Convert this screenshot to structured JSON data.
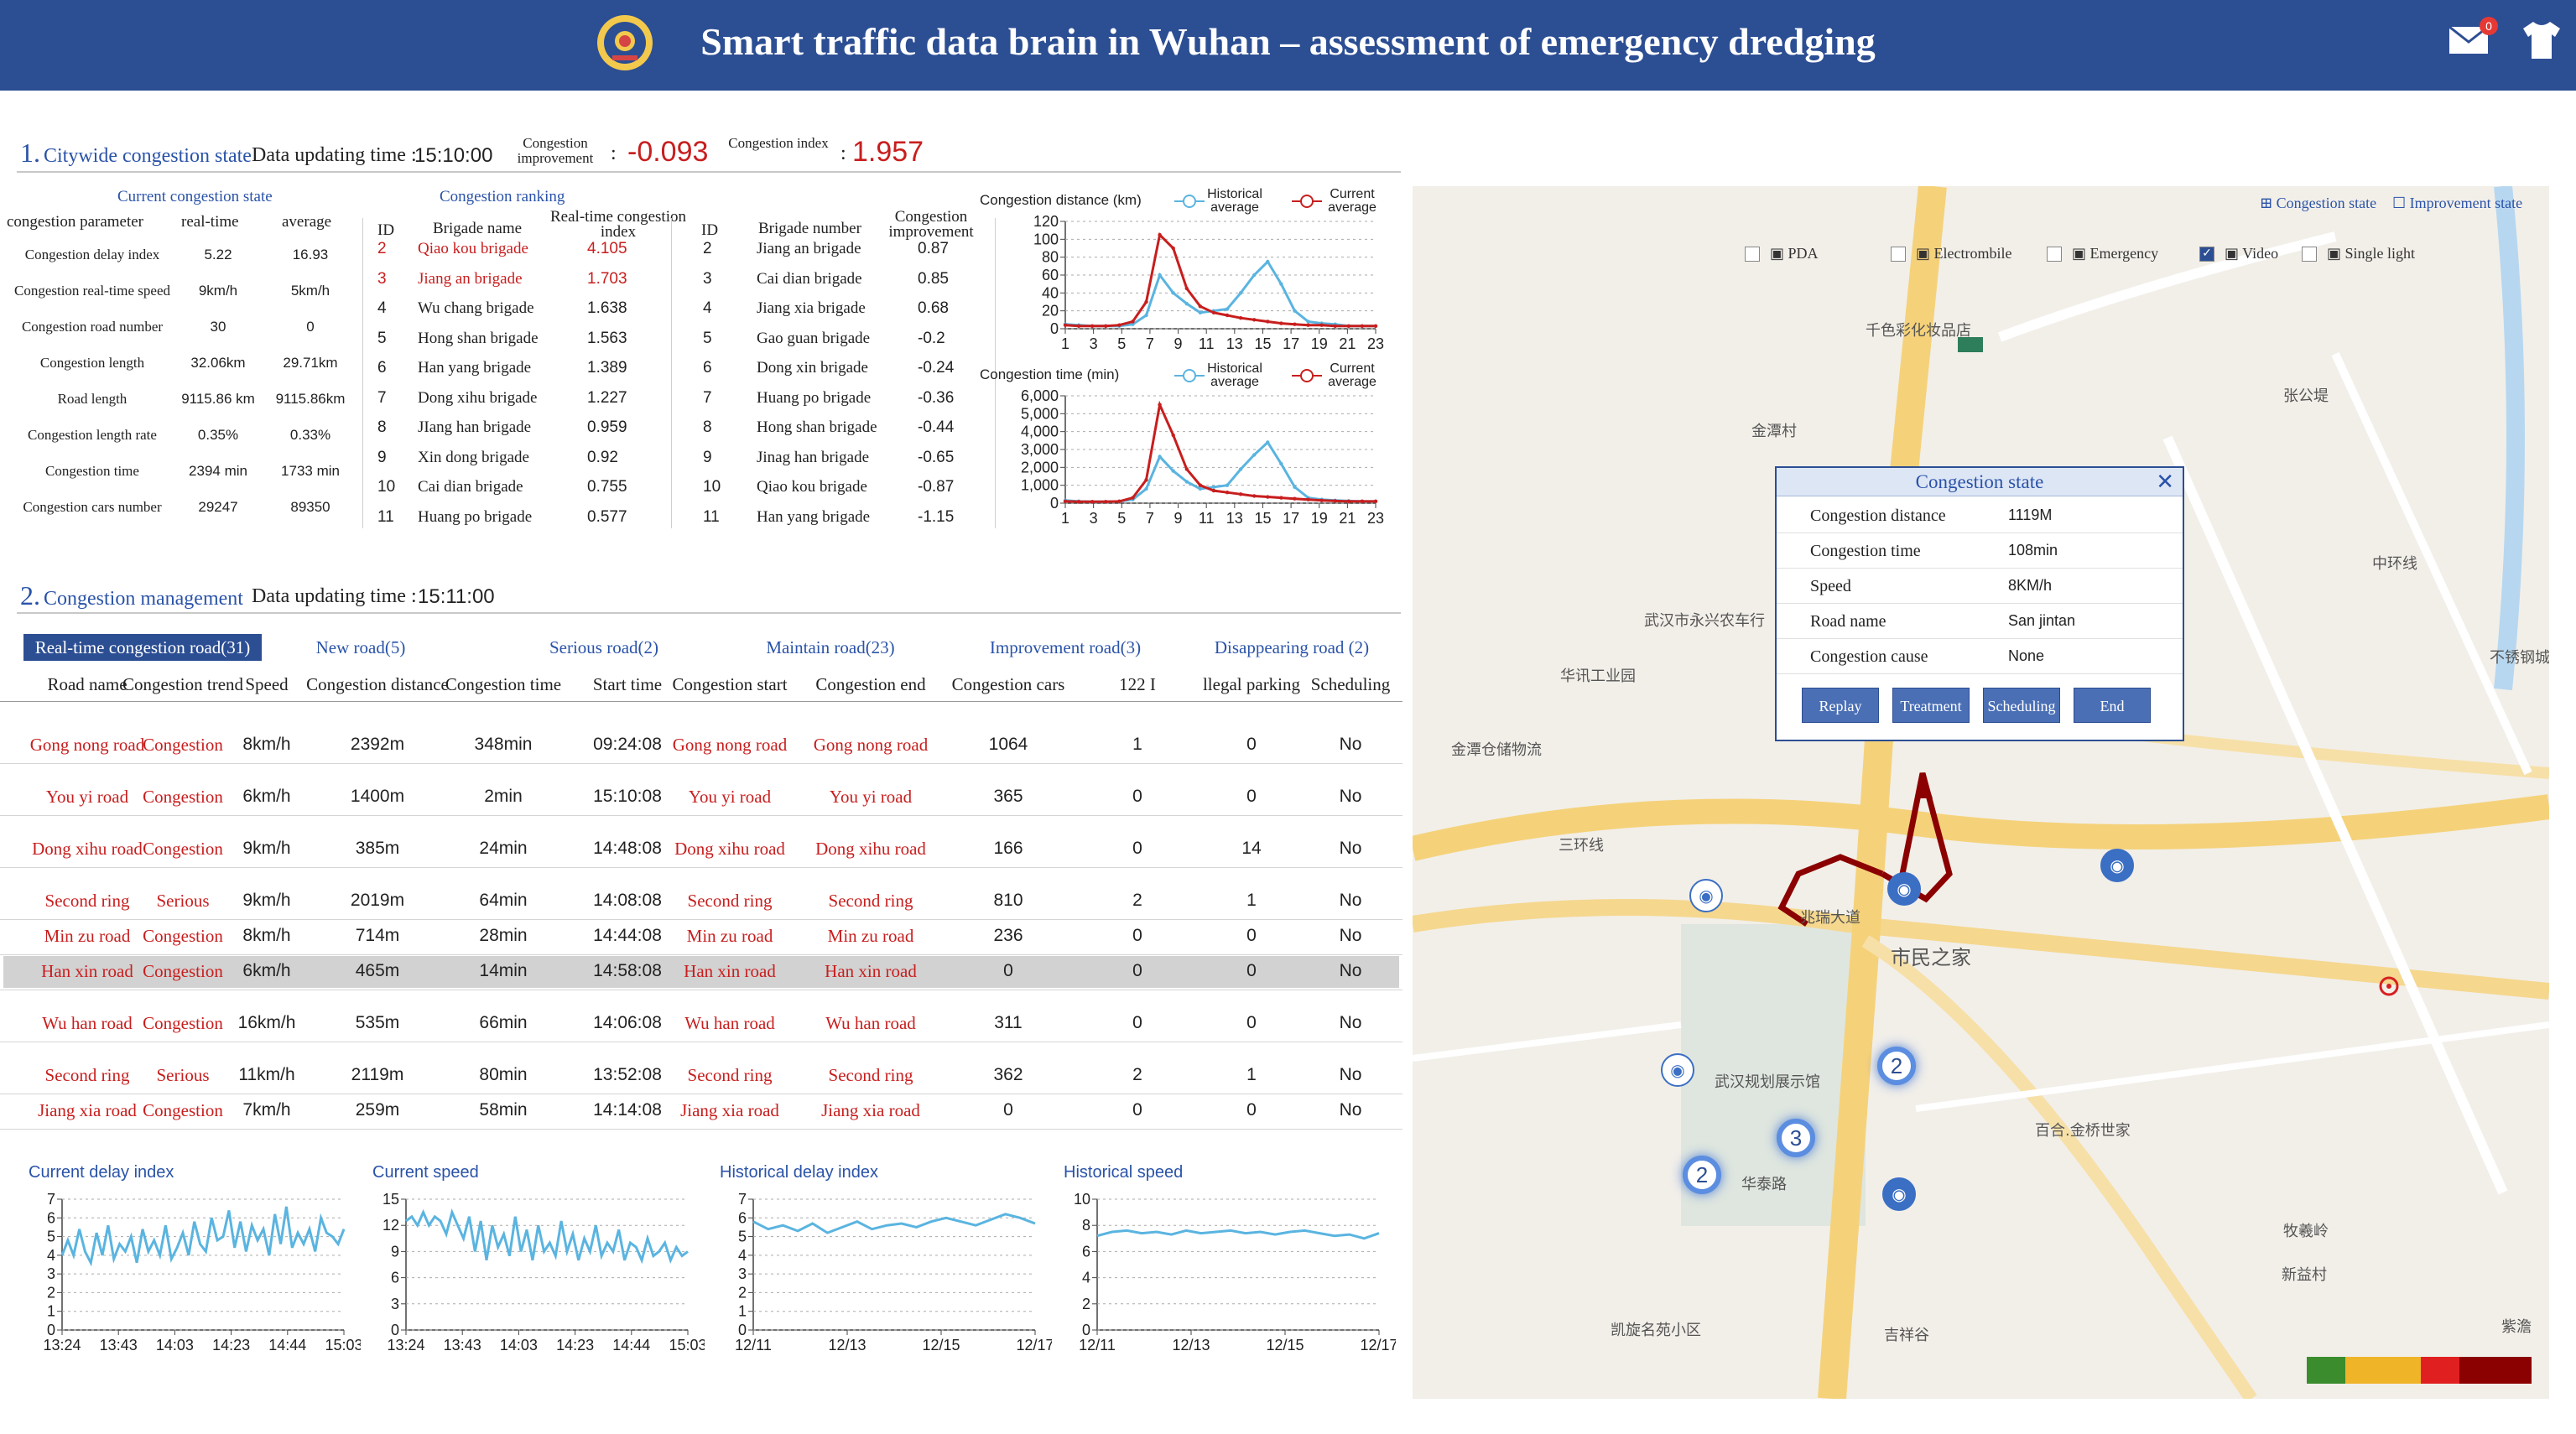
{
  "header": {
    "title": "Smart traffic data brain in Wuhan – assessment of emergency dredging",
    "notification_count": "0"
  },
  "colors": {
    "header_bg": "#2c4e93",
    "accent": "#2a53a8",
    "red": "#c81e1e",
    "series_blue": "#5ab4e0",
    "legend": [
      "#3a8c2c",
      "#f0b429",
      "#e02020",
      "#8b0000"
    ]
  },
  "section1": {
    "num": "1.",
    "title": "Citywide congestion state",
    "update_label": "Data updating time :",
    "update_time": "15:10:00",
    "improve_label": "Congestion improvement",
    "improve_value": "-0.093",
    "index_label": "Congestion index",
    "index_value": "1.957"
  },
  "current_state": {
    "title": "Current congestion state",
    "headers": [
      "congestion parameter",
      "real-time",
      "average"
    ],
    "rows": [
      [
        "Congestion delay index",
        "5.22",
        "16.93"
      ],
      [
        "Congestion real-time speed",
        "9km/h",
        "5km/h"
      ],
      [
        "Congestion road number",
        "30",
        "0"
      ],
      [
        "Congestion length",
        "32.06km",
        "29.71km"
      ],
      [
        "Road length",
        "9115.86 km",
        "9115.86km"
      ],
      [
        "Congestion length rate",
        "0.35%",
        "0.33%"
      ],
      [
        "Congestion time",
        "2394 min",
        "1733 min"
      ],
      [
        "Congestion cars number",
        "29247",
        "89350"
      ]
    ]
  },
  "ranking": {
    "title": "Congestion ranking",
    "h_id": "ID",
    "h_name": "Brigade name",
    "h_index": "Real-time congestion index",
    "h_id2": "ID",
    "h_num": "Brigade number",
    "h_improve": "Congestion improvement",
    "left": [
      [
        "2",
        "Qiao kou brigade",
        "4.105"
      ],
      [
        "3",
        "Jiang an brigade",
        "1.703"
      ],
      [
        "4",
        "Wu chang brigade",
        "1.638"
      ],
      [
        "5",
        "Hong shan brigade",
        "1.563"
      ],
      [
        "6",
        "Han yang brigade",
        "1.389"
      ],
      [
        "7",
        "Dong xihu brigade",
        "1.227"
      ],
      [
        "8",
        "JIang han brigade",
        "0.959"
      ],
      [
        "9",
        "Xin dong brigade",
        "0.92"
      ],
      [
        "10",
        "Cai dian brigade",
        "0.755"
      ],
      [
        "11",
        "Huang po brigade",
        "0.577"
      ]
    ],
    "right": [
      [
        "2",
        "Jiang an brigade",
        "0.87"
      ],
      [
        "3",
        "Cai dian brigade",
        "0.85"
      ],
      [
        "4",
        "Jiang xia brigade",
        "0.68"
      ],
      [
        "5",
        "Gao guan brigade",
        "-0.2"
      ],
      [
        "6",
        "Dong xin brigade",
        "-0.24"
      ],
      [
        "7",
        "Huang po brigade",
        "-0.36"
      ],
      [
        "8",
        "Hong shan brigade",
        "-0.44"
      ],
      [
        "9",
        "Jinag han brigade",
        "-0.65"
      ],
      [
        "10",
        "Qiao kou brigade",
        "-0.87"
      ],
      [
        "11",
        "Han yang brigade",
        "-1.15"
      ]
    ]
  },
  "chart_data": [
    {
      "type": "line",
      "title": "Congestion distance (km)",
      "x": [
        1,
        2,
        3,
        4,
        5,
        6,
        7,
        8,
        9,
        10,
        11,
        12,
        13,
        14,
        15,
        16,
        17,
        18,
        19,
        20,
        21,
        22,
        23,
        24
      ],
      "xticks": [
        "1",
        "3",
        "5",
        "7",
        "9",
        "11",
        "13",
        "15",
        "17",
        "19",
        "21",
        "23"
      ],
      "ylim": [
        0,
        120
      ],
      "yticks": [
        "0",
        "20",
        "40",
        "60",
        "80",
        "100",
        "120"
      ],
      "series": [
        {
          "name": "Historical average",
          "color": "#5ab4e0",
          "values": [
            5,
            4,
            3,
            3,
            3,
            5,
            15,
            60,
            40,
            28,
            18,
            20,
            22,
            40,
            60,
            75,
            50,
            20,
            8,
            6,
            5,
            3,
            3,
            3
          ]
        },
        {
          "name": "Current average",
          "color": "#c81e1e",
          "values": [
            4,
            3,
            3,
            3,
            4,
            8,
            30,
            105,
            90,
            45,
            25,
            18,
            15,
            12,
            10,
            8,
            6,
            5,
            4,
            4,
            3,
            3,
            3,
            3
          ]
        }
      ]
    },
    {
      "type": "line",
      "title": "Congestion time (min)",
      "x": [
        1,
        2,
        3,
        4,
        5,
        6,
        7,
        8,
        9,
        10,
        11,
        12,
        13,
        14,
        15,
        16,
        17,
        18,
        19,
        20,
        21,
        22,
        23,
        24
      ],
      "xticks": [
        "1",
        "3",
        "5",
        "7",
        "9",
        "11",
        "13",
        "15",
        "17",
        "19",
        "21",
        "23"
      ],
      "ylim": [
        0,
        6000
      ],
      "yticks": [
        "0",
        "1,000",
        "2,000",
        "3,000",
        "4,000",
        "5,000",
        "6,000"
      ],
      "series": [
        {
          "name": "Historical average",
          "color": "#5ab4e0",
          "values": [
            150,
            100,
            80,
            80,
            100,
            200,
            800,
            2600,
            1800,
            1200,
            800,
            900,
            1000,
            1900,
            2700,
            3400,
            2200,
            900,
            300,
            200,
            150,
            120,
            100,
            100
          ]
        },
        {
          "name": "Current average",
          "color": "#c81e1e",
          "values": [
            100,
            80,
            80,
            80,
            100,
            300,
            1300,
            5500,
            3800,
            1900,
            1000,
            700,
            600,
            500,
            400,
            350,
            300,
            250,
            200,
            150,
            120,
            100,
            100,
            100
          ]
        }
      ]
    },
    {
      "type": "line",
      "title": "Current delay index",
      "xticks": [
        "13:24",
        "13:43",
        "14:03",
        "14:23",
        "14:44",
        "15:03"
      ],
      "ylim": [
        0,
        7
      ],
      "yticks": [
        "0",
        "1",
        "2",
        "3",
        "4",
        "5",
        "6",
        "7"
      ],
      "series": [
        {
          "color": "#5ab4e0",
          "values": [
            4,
            4.8,
            4,
            5.4,
            4.2,
            3.6,
            5.2,
            4,
            5.6,
            3.8,
            4.6,
            4.2,
            5,
            3.6,
            5.4,
            4.2,
            4.8,
            4,
            5.6,
            3.8,
            4.4,
            5.2,
            4,
            5.8,
            4.6,
            4.2,
            6,
            4.8,
            5,
            6.4,
            4.4,
            5.8,
            4.2,
            5.6,
            4.8,
            5.4,
            4,
            6.2,
            4.6,
            6.6,
            4.4,
            5.2,
            4.6,
            5.4,
            4.2,
            6,
            5.2,
            5,
            4.6,
            5.4
          ]
        }
      ]
    },
    {
      "type": "line",
      "title": "Current speed",
      "xticks": [
        "13:24",
        "13:43",
        "14:03",
        "14:23",
        "14:44",
        "15:03"
      ],
      "ylim": [
        0,
        15
      ],
      "yticks": [
        "0",
        "3",
        "6",
        "9",
        "12",
        "15"
      ],
      "series": [
        {
          "color": "#5ab4e0",
          "values": [
            12.5,
            13,
            12,
            13.5,
            12,
            13,
            12.5,
            11,
            13.5,
            12,
            10.5,
            13,
            9,
            12.5,
            8,
            12,
            9.5,
            11,
            8.5,
            13,
            9,
            11.5,
            8,
            12,
            9,
            10,
            8.5,
            12.5,
            9,
            11,
            8,
            10.5,
            9,
            12,
            8.5,
            10,
            9,
            11.5,
            8,
            10,
            9.5,
            8,
            10.5,
            8.5,
            9,
            10,
            8,
            9.5,
            8.5,
            9
          ]
        }
      ]
    },
    {
      "type": "line",
      "title": "Historical delay index",
      "xticks": [
        "12/11",
        "12/13",
        "12/15",
        "12/17"
      ],
      "ylim": [
        0,
        7
      ],
      "yticks": [
        "0",
        "1",
        "2",
        "3",
        "4",
        "5",
        "6",
        "7"
      ],
      "series": [
        {
          "color": "#5ab4e0",
          "values": [
            5.8,
            5.4,
            5.6,
            5.3,
            5.7,
            5.2,
            5.5,
            5.8,
            5.4,
            5.6,
            5.7,
            5.5,
            5.8,
            6.0,
            5.8,
            5.6,
            5.9,
            6.2,
            6.0,
            5.7
          ]
        }
      ]
    },
    {
      "type": "line",
      "title": "Historical speed",
      "xticks": [
        "12/11",
        "12/13",
        "12/15",
        "12/17"
      ],
      "ylim": [
        0,
        10
      ],
      "yticks": [
        "0",
        "2",
        "4",
        "6",
        "8",
        "10"
      ],
      "series": [
        {
          "color": "#5ab4e0",
          "values": [
            7.2,
            7.5,
            7.6,
            7.4,
            7.5,
            7.3,
            7.6,
            7.4,
            7.5,
            7.6,
            7.4,
            7.5,
            7.3,
            7.5,
            7.6,
            7.4,
            7.2,
            7.3,
            7.0,
            7.4
          ]
        }
      ]
    }
  ],
  "section2": {
    "num": "2.",
    "title": "Congestion management",
    "update_label": "Data updating time :",
    "update_time": "15:11:00"
  },
  "tabs": [
    "Real-time congestion road(31)",
    "New road(5)",
    "Serious road(2)",
    "Maintain road(23)",
    "Improvement road(3)",
    "Disappearing road (2)"
  ],
  "table": {
    "headers": [
      "Road name",
      "Congestion trend",
      "Speed",
      "Congestion distance",
      "Congestion time",
      "Start time",
      "Congestion start",
      "Congestion end",
      "Congestion cars",
      "122 I",
      "llegal parking",
      "Scheduling"
    ],
    "rows": [
      [
        "Gong nong road",
        "Congestion",
        "8km/h",
        "2392m",
        "348min",
        "09:24:08",
        "Gong nong road",
        "Gong nong road",
        "1064",
        "1",
        "0",
        "No"
      ],
      [
        "You yi road",
        "Congestion",
        "6km/h",
        "1400m",
        "2min",
        "15:10:08",
        "You yi  road",
        "You yi  road",
        "365",
        "0",
        "0",
        "No"
      ],
      [
        "Dong xihu road",
        "Congestion",
        "9km/h",
        "385m",
        "24min",
        "14:48:08",
        "Dong xihu road",
        "Dong xihu road",
        "166",
        "0",
        "14",
        "No"
      ],
      [
        "Second ring",
        "Serious",
        "9km/h",
        "2019m",
        "64min",
        "14:08:08",
        "Second ring",
        "Second ring",
        "810",
        "2",
        "1",
        "No"
      ],
      [
        "Min zu road",
        "Congestion",
        "8km/h",
        "714m",
        "28min",
        "14:44:08",
        "Min zu road",
        "Min zu road",
        "236",
        "0",
        "0",
        "No"
      ],
      [
        "Han xin road",
        "Congestion",
        "6km/h",
        "465m",
        "14min",
        "14:58:08",
        "Han xin road",
        "Han xin road",
        "0",
        "0",
        "0",
        "No"
      ],
      [
        "Wu han road",
        "Congestion",
        "16km/h",
        "535m",
        "66min",
        "14:06:08",
        "Wu han road",
        "Wu han road",
        "311",
        "0",
        "0",
        "No"
      ],
      [
        "Second ring",
        "Serious",
        "11km/h",
        "2119m",
        "80min",
        "13:52:08",
        "Second ring",
        "Second ring",
        "362",
        "2",
        "1",
        "No"
      ],
      [
        "Jiang xia road",
        "Congestion",
        "7km/h",
        "259m",
        "58min",
        "14:14:08",
        "Jiang xia road",
        "Jiang xia road",
        "0",
        "0",
        "0",
        "No"
      ]
    ]
  },
  "map": {
    "top_buttons": [
      "Congestion state",
      "Improvement state"
    ],
    "layers": [
      "PDA",
      "Electrombile",
      "Emergency",
      "Video",
      "Single light"
    ],
    "labels": [
      "千色彩化妆品店",
      "金潭村",
      "武汉市永兴农车行",
      "华讯工业园",
      "金潭仓储物流",
      "三环线",
      "市民之家",
      "武汉规划展示馆",
      "百合.金桥世家",
      "牧羲岭",
      "新益村",
      "吉祥谷",
      "凯旋名苑小区",
      "华泰路",
      "兆瑞大道",
      "中环线",
      "张公堤",
      "不锈钢城",
      "紫澹"
    ],
    "markers": [
      "2",
      "3",
      "2"
    ],
    "popup": {
      "title": "Congestion state",
      "rows": [
        [
          "Congestion distance",
          "1119M"
        ],
        [
          "Congestion time",
          "108min"
        ],
        [
          "Speed",
          "8KM/h"
        ],
        [
          "Road name",
          "San jintan"
        ],
        [
          "Congestion cause",
          "None"
        ]
      ],
      "buttons": [
        "Replay",
        "Treatment",
        "Scheduling",
        "End"
      ]
    }
  }
}
